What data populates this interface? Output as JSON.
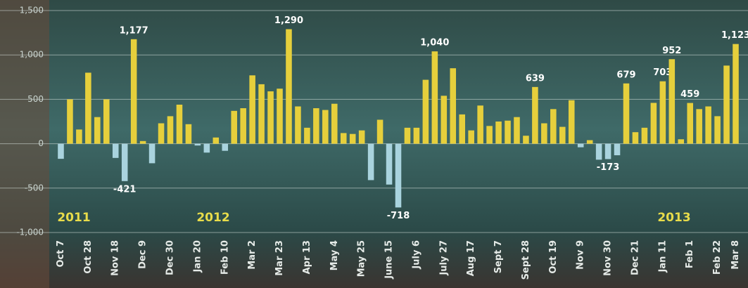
{
  "chart_data": {
    "type": "bar",
    "categories": [
      "Oct 7",
      null,
      null,
      "Oct 28",
      null,
      null,
      "Nov 18",
      null,
      null,
      "Dec 9",
      null,
      null,
      "Dec 30",
      null,
      null,
      "Jan 20",
      null,
      null,
      "Feb 10",
      null,
      null,
      "Mar 2",
      null,
      null,
      "Mar 23",
      null,
      null,
      "Apr 13",
      null,
      null,
      "May 4",
      null,
      null,
      "May 25",
      null,
      null,
      "June 15",
      null,
      null,
      "July 6",
      null,
      null,
      "July 27",
      null,
      null,
      "Aug 17",
      null,
      null,
      "Sept 7",
      null,
      null,
      "Sept 28",
      null,
      null,
      "Oct 19",
      null,
      null,
      "Nov 9",
      null,
      null,
      "Nov 30",
      null,
      null,
      "Dec 21",
      null,
      null,
      "Jan 11",
      null,
      null,
      "Feb 1",
      null,
      null,
      "Feb 22",
      null,
      "Mar 8"
    ],
    "values": [
      -170,
      500,
      160,
      800,
      300,
      500,
      -160,
      -421,
      1177,
      30,
      -220,
      230,
      310,
      440,
      220,
      -20,
      -100,
      70,
      -80,
      370,
      400,
      770,
      670,
      590,
      620,
      1290,
      420,
      180,
      400,
      380,
      450,
      120,
      110,
      150,
      -410,
      270,
      -460,
      -718,
      180,
      180,
      720,
      1040,
      540,
      850,
      330,
      150,
      430,
      200,
      250,
      260,
      300,
      90,
      639,
      230,
      390,
      190,
      490,
      -40,
      40,
      -180,
      -173,
      -130,
      679,
      130,
      180,
      460,
      703,
      952,
      50,
      459,
      390,
      420,
      310,
      880,
      1123
    ],
    "value_labels": [
      null,
      null,
      null,
      null,
      null,
      null,
      null,
      "-421",
      "1,177",
      null,
      null,
      null,
      null,
      null,
      null,
      null,
      null,
      null,
      null,
      null,
      null,
      null,
      null,
      null,
      null,
      "1,290",
      null,
      null,
      null,
      null,
      null,
      null,
      null,
      null,
      null,
      null,
      null,
      "-718",
      null,
      null,
      null,
      "1,040",
      null,
      null,
      null,
      null,
      null,
      null,
      null,
      null,
      null,
      null,
      "639",
      null,
      null,
      null,
      null,
      null,
      null,
      null,
      "-173",
      null,
      "679",
      null,
      null,
      null,
      "703",
      "952",
      null,
      "459",
      null,
      null,
      null,
      null,
      "1,123"
    ],
    "color": "#e6cf3c",
    "negative_color": "#a9d3de",
    "ylim": [
      -1000,
      1500
    ],
    "yticks": [
      {
        "value": 1500,
        "label": "1,500"
      },
      {
        "value": 1000,
        "label": "1,000"
      },
      500,
      0,
      -500,
      {
        "value": -1000,
        "label": "-1,000"
      }
    ],
    "grid": true,
    "annotations": [
      "2011",
      "2012",
      "2013"
    ]
  }
}
